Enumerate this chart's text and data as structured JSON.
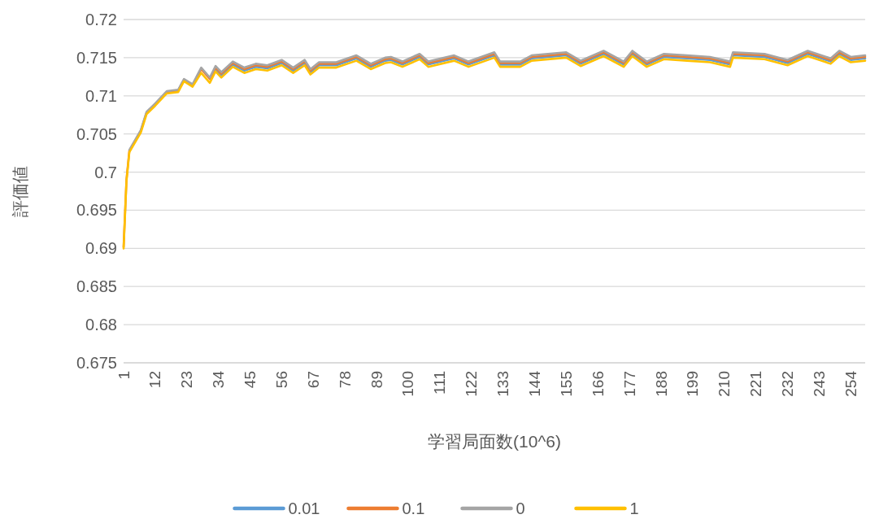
{
  "chart_data": {
    "type": "line",
    "xlabel": "学習局面数(10^6)",
    "ylabel": "評価値",
    "x": [
      1,
      2,
      3,
      7,
      9,
      12,
      16,
      20,
      22,
      25,
      28,
      31,
      33,
      35,
      39,
      43,
      47,
      51,
      56,
      60,
      64,
      66,
      69,
      75,
      82,
      87,
      92,
      94,
      98,
      104,
      107,
      116,
      121,
      130,
      132,
      139,
      143,
      155,
      160,
      168,
      175,
      178,
      183,
      189,
      197,
      205,
      212,
      213,
      224,
      232,
      239,
      247,
      250,
      254,
      259
    ],
    "xlim": [
      1,
      259
    ],
    "xticks": [
      1,
      12,
      23,
      34,
      45,
      56,
      67,
      78,
      89,
      100,
      111,
      122,
      133,
      144,
      155,
      166,
      177,
      188,
      199,
      210,
      221,
      232,
      243,
      254
    ],
    "ylim": [
      0.675,
      0.72
    ],
    "yticks": [
      0.675,
      0.68,
      0.685,
      0.69,
      0.695,
      0.7,
      0.705,
      0.71,
      0.715,
      0.72
    ],
    "grid": "y",
    "legend": "bottom",
    "marker": "none",
    "line_style": "solid",
    "series": [
      {
        "name": "0.01",
        "color": "#5b9bd5",
        "values": [
          null,
          null,
          null,
          null,
          null,
          null,
          null,
          null,
          null,
          null,
          null,
          null,
          0.7135,
          0.7127,
          0.7141,
          0.7133,
          0.7138,
          0.7136,
          0.7143,
          0.7133,
          0.7143,
          0.7131,
          0.714,
          0.714,
          0.7149,
          0.7138,
          0.7146,
          0.7147,
          0.7141,
          0.7151,
          0.7141,
          0.7149,
          0.7141,
          0.7153,
          0.7141,
          0.7141,
          0.7149,
          0.7153,
          0.7142,
          0.7155,
          0.7141,
          0.7155,
          0.7141,
          0.7151,
          0.7149,
          0.7147,
          0.7141,
          0.7153,
          0.7151,
          0.7143,
          0.7155,
          0.7145,
          0.7155,
          0.7147,
          0.7149
        ]
      },
      {
        "name": "0.1",
        "color": "#ed7d31",
        "values": [
          0.6902,
          0.699,
          0.7028,
          0.7054,
          0.7078,
          0.7089,
          0.7105,
          0.7107,
          0.7121,
          0.7114,
          0.7135,
          0.7122,
          0.7137,
          0.7129,
          0.7143,
          0.7135,
          0.714,
          0.7138,
          0.7145,
          0.7135,
          0.7145,
          0.7133,
          0.7142,
          0.7142,
          0.7151,
          0.714,
          0.7148,
          0.7149,
          0.7143,
          0.7153,
          0.7143,
          0.7151,
          0.7143,
          0.7155,
          0.7143,
          0.7143,
          0.7151,
          0.7155,
          0.7144,
          0.7157,
          0.7143,
          0.7157,
          0.7143,
          0.7153,
          0.7151,
          0.7149,
          0.7143,
          0.7155,
          0.7153,
          0.7145,
          0.7157,
          0.7147,
          0.7157,
          0.7149,
          0.7151
        ]
      },
      {
        "name": "0",
        "color": "#a5a5a5",
        "values": [
          null,
          null,
          0.7029,
          0.7055,
          0.7079,
          0.709,
          0.7106,
          0.7108,
          0.7122,
          0.7115,
          0.7137,
          0.7124,
          0.7139,
          0.7131,
          0.7145,
          0.7137,
          0.7142,
          0.714,
          0.7147,
          0.7137,
          0.7147,
          0.7135,
          0.7144,
          0.7144,
          0.7153,
          0.7142,
          0.715,
          0.7151,
          0.7145,
          0.7155,
          0.7145,
          0.7153,
          0.7145,
          0.7157,
          0.7145,
          0.7145,
          0.7153,
          0.7157,
          0.7146,
          0.7159,
          0.7145,
          0.7159,
          0.7145,
          0.7155,
          0.7153,
          0.7151,
          0.7145,
          0.7157,
          0.7155,
          0.7147,
          0.7159,
          0.7149,
          0.7159,
          0.7151,
          0.7153
        ]
      },
      {
        "name": "1",
        "color": "#ffc000",
        "values": [
          0.69,
          0.6988,
          0.7026,
          0.7052,
          0.7076,
          0.7087,
          0.7103,
          0.7105,
          0.7119,
          0.7112,
          0.713,
          0.7117,
          0.7132,
          0.7124,
          0.7138,
          0.713,
          0.7135,
          0.7133,
          0.714,
          0.713,
          0.714,
          0.7128,
          0.7137,
          0.7137,
          0.7146,
          0.7135,
          0.7143,
          0.7144,
          0.7138,
          0.7148,
          0.7138,
          0.7146,
          0.7138,
          0.715,
          0.7138,
          0.7138,
          0.7146,
          0.715,
          0.7139,
          0.7152,
          0.7138,
          0.7152,
          0.7138,
          0.7148,
          0.7146,
          0.7144,
          0.7138,
          0.715,
          0.7148,
          0.714,
          0.7152,
          0.7142,
          0.7152,
          0.7144,
          0.7146
        ]
      }
    ]
  }
}
